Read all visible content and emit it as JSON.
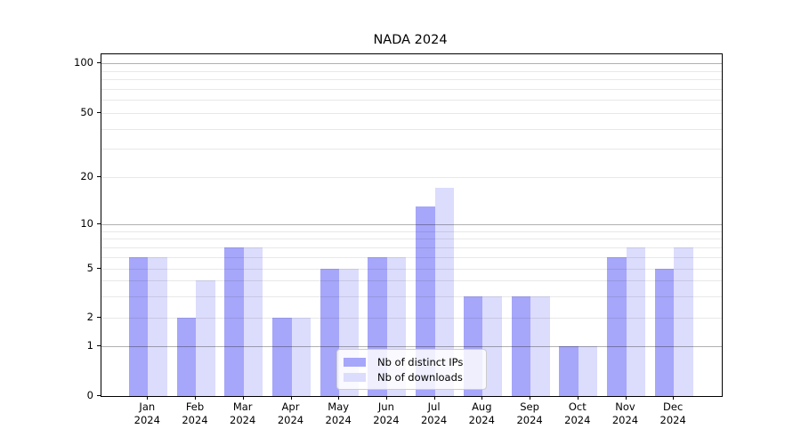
{
  "figure": {
    "title": "NADA 2024",
    "background": "#ffffff"
  },
  "chart_data": {
    "type": "bar",
    "title": "NADA 2024",
    "categories": [
      "Jan",
      "Feb",
      "Mar",
      "Apr",
      "May",
      "Jun",
      "Jul",
      "Aug",
      "Sep",
      "Oct",
      "Nov",
      "Dec"
    ],
    "category_year": "2024",
    "series": [
      {
        "name": "Nb of distinct IPs",
        "color": "#a6a6fa",
        "values": [
          6,
          2,
          7,
          2,
          5,
          6,
          13,
          3,
          3,
          1,
          6,
          5
        ]
      },
      {
        "name": "Nb of downloads",
        "color": "#dcdcfc",
        "values": [
          6,
          4,
          7,
          2,
          5,
          6,
          17,
          3,
          3,
          1,
          7,
          7
        ]
      }
    ],
    "xlabel": "",
    "ylabel": "",
    "yscale": "symlog",
    "ylim": [
      0,
      100
    ],
    "ytick_labels": [
      "0",
      "1",
      "2",
      "5",
      "10",
      "20",
      "50",
      "100"
    ],
    "ytick_values": [
      0,
      1,
      2,
      5,
      10,
      20,
      50,
      100
    ],
    "gridlines_major": [
      1,
      10,
      100
    ],
    "gridlines_minor": [
      2,
      3,
      4,
      5,
      6,
      7,
      8,
      9,
      20,
      30,
      40,
      50,
      60,
      70,
      80,
      90
    ],
    "grid": "on",
    "legend": {
      "position": "lower-center",
      "entries": [
        "Nb of distinct IPs",
        "Nb of downloads"
      ]
    },
    "colors": {
      "grid_major": "#b0b0b0",
      "grid_minor": "#e8e8e8",
      "axis": "#000000",
      "title_text": "#000000"
    }
  }
}
